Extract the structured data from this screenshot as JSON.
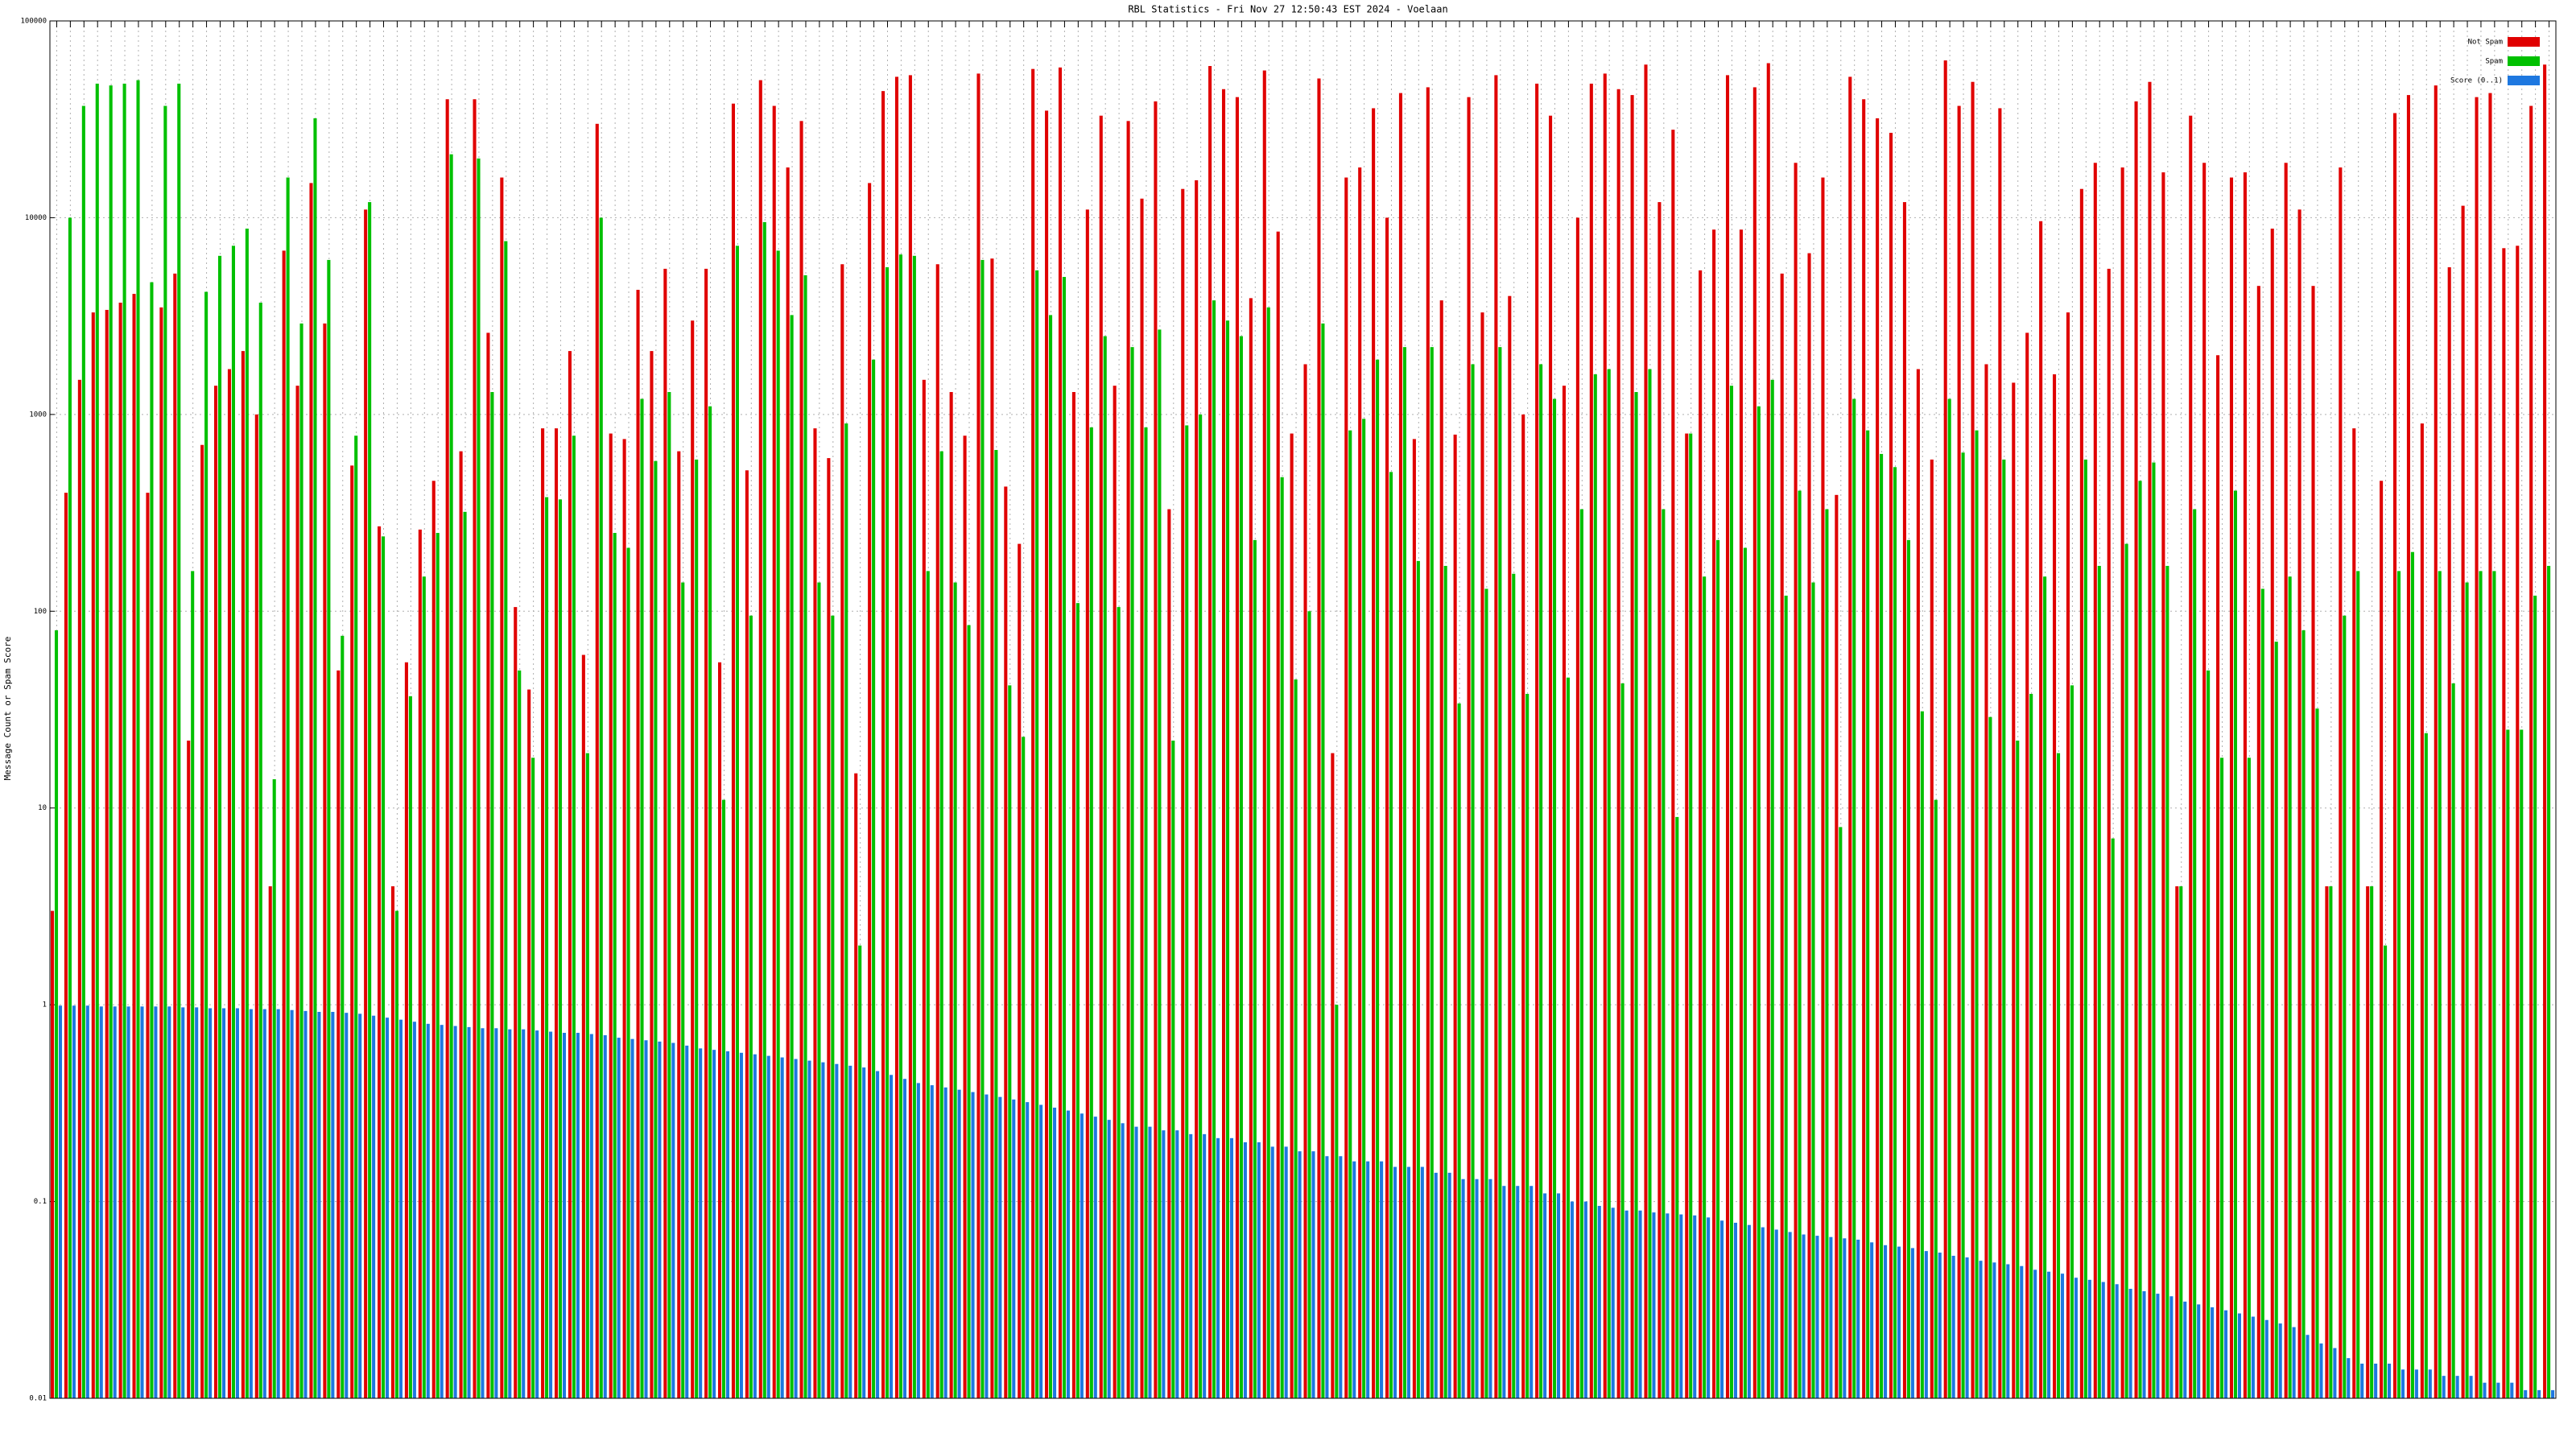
{
  "chart_data": {
    "type": "bar",
    "title": "RBL Statistics - Fri Nov 27 12:50:43 EST 2024 - Voelaan",
    "y_label": "Message Count or Spam Score",
    "log_scale": true,
    "grid": true,
    "legend_position": "upper right",
    "ylim": [
      0.01,
      100000
    ],
    "yticks": [
      0.01,
      0.1,
      1,
      10,
      100,
      1000,
      10000,
      100000
    ],
    "categories": [
      null,
      null,
      null,
      null,
      null,
      null,
      null,
      null,
      null,
      null,
      null,
      null,
      null,
      null,
      null,
      null,
      null,
      null,
      null,
      null,
      null,
      null,
      null,
      null,
      null,
      null,
      null,
      null,
      null,
      null,
      null,
      null,
      null,
      null,
      null,
      null,
      null,
      null,
      null,
      null,
      null,
      null,
      null,
      null,
      null,
      null,
      null,
      null,
      null,
      null,
      null,
      null,
      null,
      null,
      null,
      null,
      null,
      null,
      null,
      null,
      null,
      null,
      null,
      null,
      null,
      null,
      null,
      null,
      null,
      null,
      null,
      null,
      null,
      null,
      null,
      null,
      null,
      null,
      null,
      null,
      null,
      null,
      null,
      null,
      null,
      null,
      null,
      null,
      null,
      null,
      null,
      null,
      null,
      null,
      null,
      null,
      null,
      null,
      null,
      null,
      null,
      null,
      null,
      null,
      null,
      null,
      null,
      null,
      null,
      null,
      null,
      null,
      null,
      null,
      null,
      null,
      null,
      null,
      null,
      null,
      null,
      null,
      null,
      null,
      null,
      null,
      null,
      null,
      null,
      null,
      null,
      null,
      null,
      null,
      null,
      null,
      null,
      null,
      null,
      null,
      null,
      null,
      null,
      null,
      null,
      null,
      null,
      null,
      null,
      null,
      null,
      null,
      null,
      null,
      null,
      null,
      null,
      null,
      null,
      null,
      null,
      null,
      null,
      null,
      null,
      null,
      null,
      null,
      null,
      null,
      null,
      null,
      null,
      null,
      null,
      null,
      null,
      null,
      null,
      null,
      null,
      null,
      null,
      null
    ],
    "series": [
      {
        "name": "Not Spam",
        "color": "#e00000",
        "values": [
          3,
          400,
          1500,
          3300,
          3400,
          3700,
          4100,
          400,
          3500,
          5200,
          22,
          700,
          1400,
          1700,
          2100,
          1000,
          4,
          6800,
          1400,
          15000,
          2900,
          50,
          550,
          11000,
          270,
          4,
          55,
          260,
          460,
          40000,
          650,
          40000,
          2600,
          16000,
          105,
          40,
          850,
          850,
          2100,
          60,
          30000,
          800,
          750,
          4300,
          2100,
          5500,
          650,
          3000,
          5500,
          55,
          38000,
          520,
          50000,
          37000,
          18000,
          31000,
          850,
          600,
          5800,
          15,
          15000,
          44000,
          52000,
          53000,
          1500,
          5800,
          1300,
          780,
          54000,
          6200,
          430,
          220,
          57000,
          35000,
          58000,
          1300,
          11000,
          33000,
          1400,
          31000,
          12500,
          39000,
          330,
          14000,
          15500,
          59000,
          45000,
          41000,
          3900,
          56000,
          8500,
          800,
          1800,
          51000,
          19,
          16000,
          18000,
          36000,
          10000,
          43000,
          750,
          46000,
          3800,
          790,
          41000,
          3300,
          53000,
          4000,
          1000,
          48000,
          33000,
          1400,
          10000,
          48000,
          54000,
          45000,
          42000,
          60000,
          12000,
          28000,
          800,
          5400,
          8700,
          53000,
          8700,
          46000,
          61000,
          5200,
          19000,
          6600,
          16000,
          390,
          52000,
          40000,
          32000,
          27000,
          12000,
          1700,
          590,
          63000,
          37000,
          49000,
          1800,
          36000,
          1450,
          2600,
          9600,
          1600,
          3300,
          14000,
          19000,
          5500,
          18000,
          39000,
          49000,
          17000,
          4,
          33000,
          19000,
          2000,
          16000,
          17000,
          4500,
          8800,
          19000,
          11000,
          4500,
          4,
          18000,
          850,
          4,
          460,
          34000,
          42000,
          900,
          47000,
          5600,
          11500,
          41000,
          43000,
          7000,
          7200,
          37000,
          60000
        ]
      },
      {
        "name": "Spam",
        "color": "#00c000",
        "values": [
          80,
          10000,
          37000,
          48000,
          47000,
          48000,
          50000,
          4700,
          37000,
          48000,
          160,
          4200,
          6400,
          7200,
          8800,
          3700,
          14,
          16000,
          2900,
          32000,
          6100,
          75,
          780,
          12000,
          240,
          3,
          37,
          150,
          250,
          21000,
          320,
          20000,
          1300,
          7600,
          50,
          18,
          380,
          370,
          780,
          19,
          10000,
          250,
          210,
          1200,
          580,
          1300,
          140,
          590,
          1100,
          11,
          7200,
          95,
          9500,
          6800,
          3200,
          5100,
          140,
          95,
          900,
          2,
          1900,
          5600,
          6500,
          6400,
          160,
          650,
          140,
          85,
          6100,
          660,
          42,
          23,
          5400,
          3200,
          5000,
          110,
          860,
          2500,
          105,
          2200,
          860,
          2700,
          22,
          880,
          1000,
          3800,
          3000,
          2500,
          230,
          3500,
          480,
          45,
          100,
          2900,
          1,
          830,
          950,
          1900,
          510,
          2200,
          180,
          2200,
          170,
          34,
          1800,
          130,
          2200,
          155,
          38,
          1800,
          1200,
          46,
          330,
          1600,
          1700,
          43,
          1300,
          1700,
          330,
          9,
          800,
          150,
          230,
          1400,
          210,
          1100,
          1500,
          120,
          410,
          140,
          330,
          8,
          1200,
          830,
          630,
          540,
          230,
          31,
          11,
          1200,
          640,
          830,
          29,
          590,
          22,
          38,
          150,
          19,
          42,
          590,
          170,
          7,
          220,
          460,
          570,
          170,
          4,
          330,
          50,
          18,
          410,
          18,
          130,
          70,
          150,
          80,
          32,
          4,
          95,
          160,
          4,
          2,
          160,
          200,
          24,
          160,
          43,
          140,
          160,
          160,
          25,
          25,
          120,
          170
        ]
      },
      {
        "name": "Score (0..1)",
        "color": "#1e78e0",
        "values": [
          0.99,
          0.99,
          0.99,
          0.98,
          0.98,
          0.98,
          0.98,
          0.98,
          0.98,
          0.97,
          0.97,
          0.96,
          0.96,
          0.96,
          0.95,
          0.95,
          0.95,
          0.94,
          0.93,
          0.92,
          0.92,
          0.91,
          0.9,
          0.88,
          0.86,
          0.84,
          0.82,
          0.8,
          0.79,
          0.78,
          0.77,
          0.76,
          0.76,
          0.75,
          0.75,
          0.74,
          0.73,
          0.72,
          0.72,
          0.71,
          0.7,
          0.68,
          0.67,
          0.66,
          0.65,
          0.64,
          0.62,
          0.6,
          0.59,
          0.58,
          0.57,
          0.56,
          0.55,
          0.54,
          0.53,
          0.52,
          0.51,
          0.5,
          0.49,
          0.48,
          0.46,
          0.44,
          0.42,
          0.4,
          0.39,
          0.38,
          0.37,
          0.36,
          0.35,
          0.34,
          0.33,
          0.32,
          0.31,
          0.3,
          0.29,
          0.28,
          0.27,
          0.26,
          0.25,
          0.24,
          0.24,
          0.23,
          0.23,
          0.22,
          0.22,
          0.21,
          0.21,
          0.2,
          0.2,
          0.19,
          0.19,
          0.18,
          0.18,
          0.17,
          0.17,
          0.16,
          0.16,
          0.16,
          0.15,
          0.15,
          0.15,
          0.14,
          0.14,
          0.13,
          0.13,
          0.13,
          0.12,
          0.12,
          0.12,
          0.11,
          0.11,
          0.1,
          0.1,
          0.095,
          0.093,
          0.09,
          0.09,
          0.088,
          0.087,
          0.086,
          0.085,
          0.083,
          0.08,
          0.078,
          0.076,
          0.074,
          0.072,
          0.07,
          0.068,
          0.067,
          0.066,
          0.065,
          0.064,
          0.062,
          0.06,
          0.059,
          0.058,
          0.056,
          0.055,
          0.053,
          0.052,
          0.05,
          0.049,
          0.048,
          0.047,
          0.045,
          0.044,
          0.043,
          0.041,
          0.04,
          0.039,
          0.038,
          0.036,
          0.035,
          0.034,
          0.033,
          0.031,
          0.03,
          0.029,
          0.028,
          0.027,
          0.026,
          0.025,
          0.024,
          0.023,
          0.021,
          0.019,
          0.018,
          0.016,
          0.015,
          0.015,
          0.015,
          0.014,
          0.014,
          0.014,
          0.013,
          0.013,
          0.013,
          0.012,
          0.012,
          0.012,
          0.011,
          0.011,
          0.011
        ]
      }
    ]
  }
}
